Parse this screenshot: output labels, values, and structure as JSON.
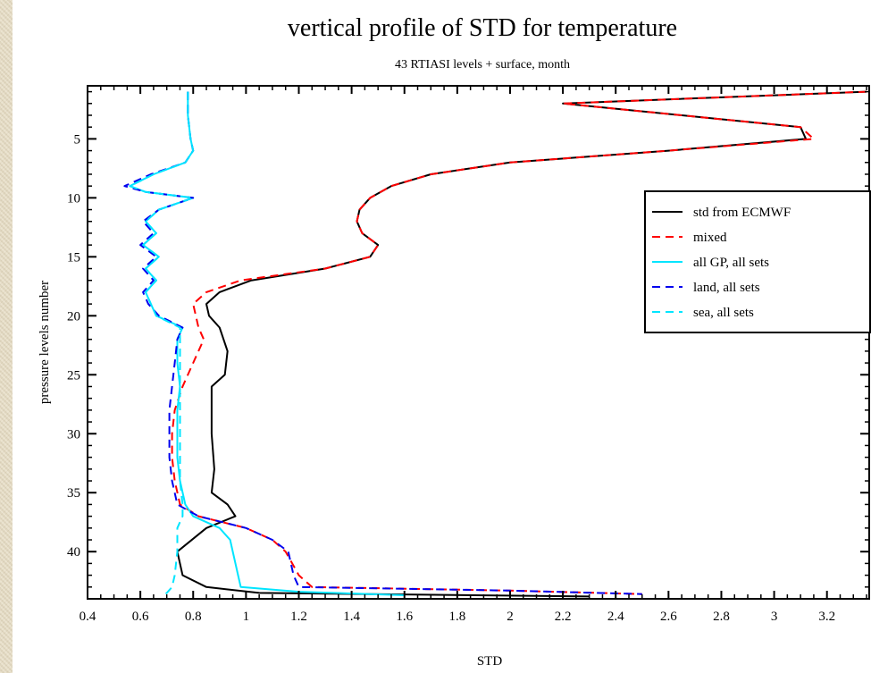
{
  "chart_data": {
    "type": "line",
    "title": "vertical profile of STD for temperature",
    "subtitle": "43 RTIASI levels + surface, month",
    "xlabel": "STD",
    "ylabel": "pressure levels number",
    "xlim": [
      0.4,
      3.36
    ],
    "ylim": [
      44,
      0.5
    ],
    "x_ticks": [
      0.4,
      0.6,
      0.8,
      1,
      1.2,
      1.4,
      1.6,
      1.8,
      2,
      2.2,
      2.4,
      2.6,
      2.8,
      3,
      3.2
    ],
    "x_tick_labels": [
      "0.4",
      "0.6",
      "0.8",
      "1",
      "1.2",
      "1.4",
      "1.6",
      "1.8",
      "2",
      "2.2",
      "2.4",
      "2.6",
      "2.8",
      "3",
      "3.2"
    ],
    "y_ticks": [
      5,
      10,
      15,
      20,
      25,
      30,
      35,
      40
    ],
    "y_tick_labels": [
      "5",
      "10",
      "15",
      "20",
      "25",
      "30",
      "35",
      "40"
    ],
    "grid": false,
    "legend_position": "right",
    "series": [
      {
        "name": "std from ECMWF",
        "color": "#000000",
        "dash": "solid",
        "points": [
          [
            3.35,
            1
          ],
          [
            2.2,
            2
          ],
          [
            3.1,
            4
          ],
          [
            3.12,
            5
          ],
          [
            2.6,
            6
          ],
          [
            2.0,
            7
          ],
          [
            1.7,
            8
          ],
          [
            1.55,
            9
          ],
          [
            1.47,
            10
          ],
          [
            1.43,
            11
          ],
          [
            1.42,
            12
          ],
          [
            1.44,
            13
          ],
          [
            1.5,
            14
          ],
          [
            1.47,
            15
          ],
          [
            1.3,
            16
          ],
          [
            1.02,
            17
          ],
          [
            0.9,
            18
          ],
          [
            0.85,
            19
          ],
          [
            0.86,
            20
          ],
          [
            0.9,
            21
          ],
          [
            0.93,
            23
          ],
          [
            0.92,
            25
          ],
          [
            0.87,
            26
          ],
          [
            0.87,
            30
          ],
          [
            0.88,
            33
          ],
          [
            0.87,
            35
          ],
          [
            0.93,
            36
          ],
          [
            0.96,
            37
          ],
          [
            0.85,
            38
          ],
          [
            0.74,
            40
          ],
          [
            0.76,
            42
          ],
          [
            0.85,
            43
          ],
          [
            1.05,
            43.5
          ],
          [
            2.3,
            43.8
          ]
        ]
      },
      {
        "name": "mixed",
        "color": "#ff0000",
        "dash": "dashed",
        "points": [
          [
            3.35,
            1
          ],
          [
            2.2,
            2
          ],
          [
            3.1,
            4
          ],
          [
            3.15,
            5
          ],
          [
            2.6,
            6
          ],
          [
            2.0,
            7
          ],
          [
            1.7,
            8
          ],
          [
            1.55,
            9
          ],
          [
            1.47,
            10
          ],
          [
            1.43,
            11
          ],
          [
            1.42,
            12
          ],
          [
            1.44,
            13
          ],
          [
            1.5,
            14
          ],
          [
            1.47,
            15
          ],
          [
            1.3,
            16
          ],
          [
            0.98,
            17
          ],
          [
            0.85,
            18
          ],
          [
            0.8,
            19
          ],
          [
            0.82,
            21
          ],
          [
            0.84,
            22
          ],
          [
            0.8,
            24
          ],
          [
            0.76,
            26
          ],
          [
            0.73,
            28
          ],
          [
            0.72,
            30
          ],
          [
            0.72,
            32
          ],
          [
            0.73,
            34
          ],
          [
            0.75,
            36
          ],
          [
            0.82,
            37
          ],
          [
            1.0,
            38
          ],
          [
            1.1,
            39
          ],
          [
            1.15,
            40
          ],
          [
            1.2,
            42
          ],
          [
            1.25,
            43
          ],
          [
            2.0,
            43.3
          ],
          [
            2.5,
            43.6
          ]
        ]
      },
      {
        "name": "all GP, all sets",
        "color": "#00e5ff",
        "dash": "solid",
        "points": [
          [
            0.78,
            1
          ],
          [
            0.78,
            3
          ],
          [
            0.79,
            5
          ],
          [
            0.8,
            6
          ],
          [
            0.77,
            7
          ],
          [
            0.65,
            8
          ],
          [
            0.56,
            9
          ],
          [
            0.62,
            9.5
          ],
          [
            0.8,
            10
          ],
          [
            0.67,
            11
          ],
          [
            0.62,
            12
          ],
          [
            0.66,
            13
          ],
          [
            0.61,
            14
          ],
          [
            0.67,
            15
          ],
          [
            0.62,
            16
          ],
          [
            0.66,
            17
          ],
          [
            0.62,
            18
          ],
          [
            0.64,
            19
          ],
          [
            0.66,
            20
          ],
          [
            0.76,
            21
          ],
          [
            0.74,
            22
          ],
          [
            0.74,
            24
          ],
          [
            0.75,
            26
          ],
          [
            0.74,
            28
          ],
          [
            0.74,
            30
          ],
          [
            0.74,
            32
          ],
          [
            0.75,
            34
          ],
          [
            0.77,
            36
          ],
          [
            0.8,
            37
          ],
          [
            0.9,
            38
          ],
          [
            0.94,
            39
          ],
          [
            0.97,
            42
          ],
          [
            0.98,
            43
          ],
          [
            1.2,
            43.4
          ],
          [
            1.6,
            43.7
          ]
        ]
      },
      {
        "name": "land, all sets",
        "color": "#0000ee",
        "dash": "dashed",
        "points": [
          [
            0.78,
            1
          ],
          [
            0.78,
            3
          ],
          [
            0.79,
            5
          ],
          [
            0.8,
            6
          ],
          [
            0.77,
            7
          ],
          [
            0.64,
            8
          ],
          [
            0.54,
            9
          ],
          [
            0.62,
            9.5
          ],
          [
            0.8,
            10
          ],
          [
            0.67,
            11
          ],
          [
            0.61,
            12
          ],
          [
            0.65,
            13
          ],
          [
            0.6,
            14
          ],
          [
            0.66,
            15
          ],
          [
            0.61,
            16
          ],
          [
            0.65,
            17
          ],
          [
            0.61,
            18
          ],
          [
            0.63,
            19
          ],
          [
            0.67,
            20
          ],
          [
            0.76,
            21
          ],
          [
            0.74,
            22
          ],
          [
            0.73,
            24
          ],
          [
            0.72,
            26
          ],
          [
            0.71,
            28
          ],
          [
            0.71,
            30
          ],
          [
            0.71,
            32
          ],
          [
            0.72,
            34
          ],
          [
            0.74,
            36
          ],
          [
            0.82,
            37
          ],
          [
            1.0,
            38
          ],
          [
            1.1,
            39
          ],
          [
            1.16,
            40
          ],
          [
            1.18,
            42
          ],
          [
            1.2,
            43
          ],
          [
            2.0,
            43.3
          ],
          [
            2.5,
            43.6
          ]
        ]
      },
      {
        "name": "sea, all sets",
        "color": "#00e5ff",
        "dash": "dashed",
        "points": [
          [
            0.78,
            1
          ],
          [
            0.78,
            3
          ],
          [
            0.79,
            5
          ],
          [
            0.8,
            6
          ],
          [
            0.77,
            7
          ],
          [
            0.65,
            8
          ],
          [
            0.56,
            9
          ],
          [
            0.62,
            9.5
          ],
          [
            0.8,
            10
          ],
          [
            0.67,
            11
          ],
          [
            0.62,
            12
          ],
          [
            0.66,
            13
          ],
          [
            0.61,
            14
          ],
          [
            0.67,
            15
          ],
          [
            0.62,
            16
          ],
          [
            0.66,
            17
          ],
          [
            0.62,
            18
          ],
          [
            0.64,
            19
          ],
          [
            0.66,
            20
          ],
          [
            0.75,
            21
          ],
          [
            0.75,
            22
          ],
          [
            0.75,
            24
          ],
          [
            0.75,
            26
          ],
          [
            0.75,
            28
          ],
          [
            0.75,
            30
          ],
          [
            0.75,
            32
          ],
          [
            0.75,
            34
          ],
          [
            0.76,
            36
          ],
          [
            0.76,
            37
          ],
          [
            0.74,
            38
          ],
          [
            0.74,
            40
          ],
          [
            0.73,
            42
          ],
          [
            0.72,
            43
          ],
          [
            0.7,
            43.5
          ],
          [
            0.68,
            43.8
          ]
        ]
      }
    ]
  }
}
